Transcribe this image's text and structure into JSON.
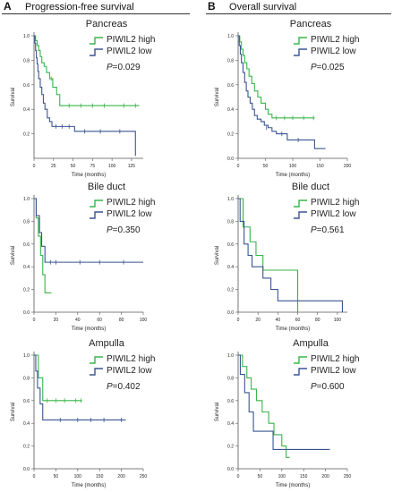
{
  "columns": [
    {
      "letter": "A",
      "title": "Progression-free survival"
    },
    {
      "letter": "B",
      "title": "Overall survival"
    }
  ],
  "colors": {
    "high": "#39b54a",
    "low": "#3a5592"
  },
  "chart_data": [
    {
      "type": "line",
      "title": "Pancreas",
      "xlabel": "Time (months)",
      "ylabel": "Survival",
      "xlim": [
        0,
        140
      ],
      "ylim": [
        0.0,
        1.0
      ],
      "xticks": [
        0,
        25,
        50,
        75,
        100,
        125
      ],
      "yticks": [
        0.2,
        0.4,
        0.6,
        0.8,
        1.0
      ],
      "legend": [
        "PIWIL2 high",
        "PIWIL2 low"
      ],
      "p_label": "P",
      "p_value": "=0.029",
      "series": [
        {
          "name": "PIWIL2 high",
          "points": [
            [
              0,
              1.0
            ],
            [
              2,
              0.96
            ],
            [
              4,
              0.92
            ],
            [
              6,
              0.88
            ],
            [
              8,
              0.83
            ],
            [
              10,
              0.78
            ],
            [
              13,
              0.75
            ],
            [
              16,
              0.7
            ],
            [
              20,
              0.65
            ],
            [
              24,
              0.58
            ],
            [
              29,
              0.52
            ],
            [
              33,
              0.43
            ],
            [
              135,
              0.43
            ]
          ],
          "censors": [
            [
              22,
              0.65
            ],
            [
              45,
              0.43
            ],
            [
              60,
              0.43
            ],
            [
              75,
              0.43
            ],
            [
              90,
              0.43
            ],
            [
              115,
              0.43
            ],
            [
              130,
              0.43
            ]
          ]
        },
        {
          "name": "PIWIL2 low",
          "points": [
            [
              0,
              1.0
            ],
            [
              1,
              0.94
            ],
            [
              2,
              0.88
            ],
            [
              3,
              0.82
            ],
            [
              4,
              0.77
            ],
            [
              5,
              0.71
            ],
            [
              6,
              0.65
            ],
            [
              8,
              0.58
            ],
            [
              10,
              0.52
            ],
            [
              12,
              0.45
            ],
            [
              14,
              0.4
            ],
            [
              17,
              0.33
            ],
            [
              20,
              0.3
            ],
            [
              23,
              0.26
            ],
            [
              50,
              0.26
            ],
            [
              52,
              0.22
            ],
            [
              130,
              0.22
            ],
            [
              130,
              0.02
            ]
          ],
          "censors": [
            [
              28,
              0.26
            ],
            [
              36,
              0.26
            ],
            [
              45,
              0.26
            ],
            [
              65,
              0.22
            ],
            [
              85,
              0.22
            ],
            [
              110,
              0.22
            ]
          ]
        }
      ]
    },
    {
      "type": "line",
      "title": "Pancreas",
      "xlabel": "Time (months)",
      "ylabel": "Survival",
      "xlim": [
        0,
        200
      ],
      "ylim": [
        0.0,
        1.0
      ],
      "xticks": [
        0,
        50,
        100,
        150,
        200
      ],
      "yticks": [
        0.0,
        0.2,
        0.4,
        0.6,
        0.8,
        1.0
      ],
      "legend": [
        "PIWIL2 high",
        "PIWIL2 low"
      ],
      "p_label": "P",
      "p_value": "=0.025",
      "series": [
        {
          "name": "PIWIL2 high",
          "points": [
            [
              0,
              1.0
            ],
            [
              3,
              0.95
            ],
            [
              6,
              0.89
            ],
            [
              9,
              0.84
            ],
            [
              12,
              0.78
            ],
            [
              16,
              0.73
            ],
            [
              20,
              0.67
            ],
            [
              25,
              0.61
            ],
            [
              30,
              0.55
            ],
            [
              36,
              0.5
            ],
            [
              42,
              0.45
            ],
            [
              50,
              0.4
            ],
            [
              55,
              0.36
            ],
            [
              62,
              0.33
            ],
            [
              140,
              0.33
            ]
          ],
          "censors": [
            [
              70,
              0.33
            ],
            [
              85,
              0.33
            ],
            [
              100,
              0.33
            ],
            [
              120,
              0.33
            ],
            [
              138,
              0.33
            ]
          ]
        },
        {
          "name": "PIWIL2 low",
          "points": [
            [
              0,
              1.0
            ],
            [
              2,
              0.92
            ],
            [
              4,
              0.85
            ],
            [
              6,
              0.78
            ],
            [
              9,
              0.7
            ],
            [
              12,
              0.62
            ],
            [
              15,
              0.55
            ],
            [
              18,
              0.5
            ],
            [
              22,
              0.45
            ],
            [
              26,
              0.4
            ],
            [
              30,
              0.35
            ],
            [
              35,
              0.32
            ],
            [
              42,
              0.3
            ],
            [
              48,
              0.27
            ],
            [
              55,
              0.25
            ],
            [
              62,
              0.22
            ],
            [
              70,
              0.2
            ],
            [
              90,
              0.15
            ],
            [
              140,
              0.08
            ],
            [
              160,
              0.08
            ]
          ],
          "censors": [
            [
              52,
              0.25
            ],
            [
              80,
              0.2
            ],
            [
              110,
              0.15
            ]
          ]
        }
      ]
    },
    {
      "type": "line",
      "title": "Bile duct",
      "xlabel": "Time (months)",
      "ylabel": "Survival",
      "xlim": [
        0,
        100
      ],
      "ylim": [
        0.0,
        1.0
      ],
      "xticks": [
        0,
        20,
        40,
        60,
        80,
        100
      ],
      "yticks": [
        0.0,
        0.2,
        0.4,
        0.6,
        0.8,
        1.0
      ],
      "legend": [
        "PIWIL2 high",
        "PIWIL2 low"
      ],
      "p_label": "P",
      "p_value": "=0.350",
      "series": [
        {
          "name": "PIWIL2 high",
          "points": [
            [
              0,
              1.0
            ],
            [
              2,
              0.83
            ],
            [
              4,
              0.67
            ],
            [
              6,
              0.5
            ],
            [
              8,
              0.33
            ],
            [
              10,
              0.17
            ],
            [
              16,
              0.17
            ]
          ],
          "censors": []
        },
        {
          "name": "PIWIL2 low",
          "points": [
            [
              0,
              1.0
            ],
            [
              2,
              0.85
            ],
            [
              5,
              0.7
            ],
            [
              7,
              0.58
            ],
            [
              10,
              0.44
            ],
            [
              100,
              0.44
            ]
          ],
          "censors": [
            [
              15,
              0.44
            ],
            [
              20,
              0.44
            ],
            [
              42,
              0.44
            ],
            [
              60,
              0.44
            ],
            [
              82,
              0.44
            ]
          ]
        }
      ]
    },
    {
      "type": "line",
      "title": "Bile duct",
      "xlabel": "Time (months)",
      "ylabel": "Survival",
      "xlim": [
        0,
        110
      ],
      "ylim": [
        0.0,
        1.0
      ],
      "xticks": [
        0,
        20,
        40,
        60,
        80,
        100
      ],
      "yticks": [
        0.0,
        0.2,
        0.4,
        0.6,
        0.8,
        1.0
      ],
      "legend": [
        "PIWIL2 high",
        "PIWIL2 low"
      ],
      "p_label": "P",
      "p_value": "=0.561",
      "series": [
        {
          "name": "PIWIL2 high",
          "points": [
            [
              0,
              1.0
            ],
            [
              5,
              0.75
            ],
            [
              12,
              0.62
            ],
            [
              18,
              0.5
            ],
            [
              25,
              0.37
            ],
            [
              60,
              0.37
            ],
            [
              60,
              0.0
            ]
          ],
          "censors": []
        },
        {
          "name": "PIWIL2 low",
          "points": [
            [
              0,
              1.0
            ],
            [
              2,
              0.8
            ],
            [
              6,
              0.6
            ],
            [
              10,
              0.5
            ],
            [
              14,
              0.4
            ],
            [
              25,
              0.3
            ],
            [
              33,
              0.2
            ],
            [
              40,
              0.1
            ],
            [
              105,
              0.1
            ],
            [
              105,
              0.0
            ]
          ],
          "censors": []
        }
      ]
    },
    {
      "type": "line",
      "title": "Ampulla",
      "xlabel": "Time (months)",
      "ylabel": "Survival",
      "xlim": [
        0,
        250
      ],
      "ylim": [
        0.0,
        1.0
      ],
      "xticks": [
        0,
        50,
        100,
        150,
        200,
        250
      ],
      "yticks": [
        0.0,
        0.2,
        0.4,
        0.6,
        0.8,
        1.0
      ],
      "legend": [
        "PIWIL2 high",
        "PIWIL2 low"
      ],
      "p_label": "P",
      "p_value": "=0.402",
      "series": [
        {
          "name": "PIWIL2 high",
          "points": [
            [
              0,
              1.0
            ],
            [
              10,
              0.8
            ],
            [
              20,
              0.6
            ],
            [
              110,
              0.6
            ]
          ],
          "censors": [
            [
              30,
              0.6
            ],
            [
              50,
              0.6
            ],
            [
              70,
              0.6
            ],
            [
              95,
              0.6
            ],
            [
              108,
              0.6
            ]
          ]
        },
        {
          "name": "PIWIL2 low",
          "points": [
            [
              0,
              1.0
            ],
            [
              4,
              0.86
            ],
            [
              8,
              0.71
            ],
            [
              14,
              0.57
            ],
            [
              20,
              0.43
            ],
            [
              210,
              0.43
            ]
          ],
          "censors": [
            [
              60,
              0.43
            ],
            [
              100,
              0.43
            ],
            [
              130,
              0.43
            ],
            [
              160,
              0.43
            ],
            [
              200,
              0.43
            ]
          ]
        }
      ]
    },
    {
      "type": "line",
      "title": "Ampulla",
      "xlabel": "Time (months)",
      "ylabel": "Survival",
      "xlim": [
        0,
        250
      ],
      "ylim": [
        0.0,
        1.0
      ],
      "xticks": [
        0,
        50,
        100,
        150,
        200,
        250
      ],
      "yticks": [
        0.0,
        0.2,
        0.4,
        0.6,
        0.8,
        1.0
      ],
      "legend": [
        "PIWIL2 high",
        "PIWIL2 low"
      ],
      "p_label": "P",
      "p_value": "=0.600",
      "series": [
        {
          "name": "PIWIL2 high",
          "points": [
            [
              0,
              1.0
            ],
            [
              10,
              0.9
            ],
            [
              20,
              0.8
            ],
            [
              30,
              0.7
            ],
            [
              42,
              0.6
            ],
            [
              55,
              0.5
            ],
            [
              70,
              0.4
            ],
            [
              82,
              0.3
            ],
            [
              100,
              0.2
            ],
            [
              110,
              0.1
            ],
            [
              118,
              0.1
            ]
          ],
          "censors": []
        },
        {
          "name": "PIWIL2 low",
          "points": [
            [
              0,
              1.0
            ],
            [
              5,
              0.83
            ],
            [
              15,
              0.67
            ],
            [
              25,
              0.5
            ],
            [
              35,
              0.33
            ],
            [
              80,
              0.17
            ],
            [
              210,
              0.17
            ]
          ],
          "censors": []
        }
      ]
    }
  ]
}
